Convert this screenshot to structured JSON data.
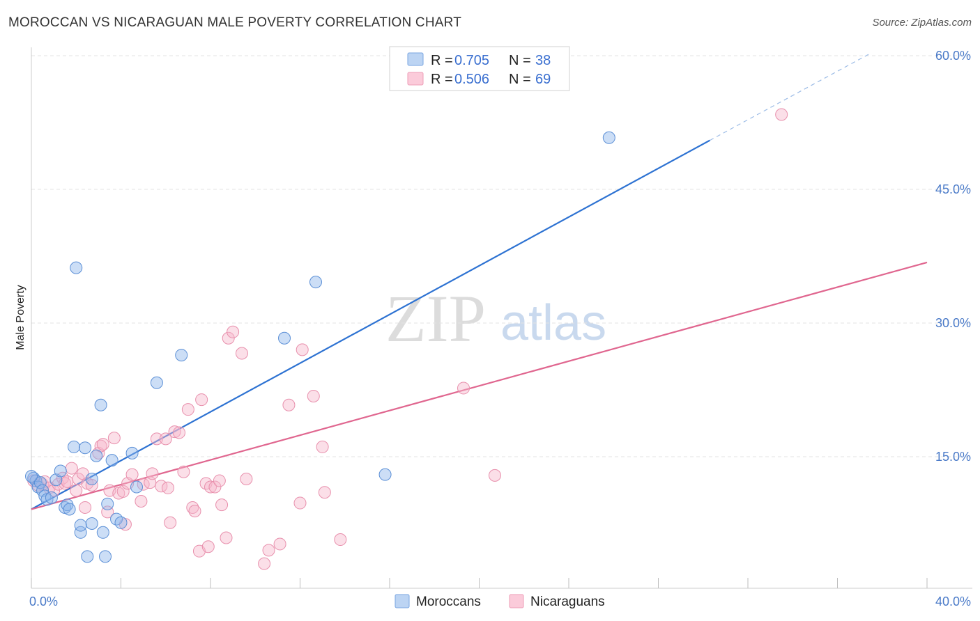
{
  "title": "MOROCCAN VS NICARAGUAN MALE POVERTY CORRELATION CHART",
  "source": "Source: ZipAtlas.com",
  "watermark": {
    "zip": "ZIP",
    "atlas": "atlas"
  },
  "legend": {
    "r_label": "R =",
    "n_label": "N =",
    "entries": [
      {
        "r": "0.705",
        "n": "38"
      },
      {
        "r": "0.506",
        "n": "69"
      }
    ]
  },
  "chart_data": {
    "type": "scatter",
    "title": "MOROCCAN VS NICARAGUAN MALE POVERTY CORRELATION CHART",
    "xlabel": "",
    "ylabel": "Male Poverty",
    "xlim": [
      0,
      40
    ],
    "ylim": [
      0,
      60
    ],
    "x_tick_labels": [
      "0.0%",
      "40.0%"
    ],
    "y_ticks": [
      15,
      30,
      45,
      60
    ],
    "y_tick_labels": [
      "15.0%",
      "30.0%",
      "45.0%",
      "60.0%"
    ],
    "grid": true,
    "legend_position": "top-center",
    "series": [
      {
        "name": "Moroccans",
        "color": "#8fb6ea",
        "stroke": "#5b8fd6",
        "line_color": "#2d72d2",
        "trend": {
          "x0": 0,
          "y0": 9.1,
          "x1": 30.3,
          "y1": 50.5,
          "dash_to_x": 37.5,
          "dash_to_y": 60.3
        },
        "points": [
          [
            0.1,
            12.6
          ],
          [
            0.2,
            12.3
          ],
          [
            0.3,
            11.6
          ],
          [
            0.4,
            12.1
          ],
          [
            0.5,
            11.2
          ],
          [
            0.6,
            10.6
          ],
          [
            0.7,
            10.2
          ],
          [
            0.9,
            10.4
          ],
          [
            1.1,
            12.4
          ],
          [
            1.3,
            13.4
          ],
          [
            1.5,
            9.3
          ],
          [
            1.6,
            9.6
          ],
          [
            1.7,
            9.1
          ],
          [
            1.9,
            16.1
          ],
          [
            2.0,
            36.2
          ],
          [
            2.2,
            6.5
          ],
          [
            2.2,
            7.3
          ],
          [
            2.4,
            16.0
          ],
          [
            2.5,
            3.8
          ],
          [
            2.7,
            7.5
          ],
          [
            2.7,
            12.5
          ],
          [
            2.9,
            15.1
          ],
          [
            3.1,
            20.8
          ],
          [
            3.2,
            6.5
          ],
          [
            3.3,
            3.8
          ],
          [
            3.4,
            9.7
          ],
          [
            3.6,
            14.6
          ],
          [
            3.8,
            8.0
          ],
          [
            4.0,
            7.6
          ],
          [
            4.5,
            15.4
          ],
          [
            4.7,
            11.6
          ],
          [
            5.6,
            23.3
          ],
          [
            6.7,
            26.4
          ],
          [
            11.3,
            28.3
          ],
          [
            12.7,
            34.6
          ],
          [
            15.8,
            13.0
          ],
          [
            25.8,
            50.8
          ],
          [
            0.0,
            12.8
          ]
        ]
      },
      {
        "name": "Nicaraguans",
        "color": "#f7b8cc",
        "stroke": "#e88fac",
        "line_color": "#e0668f",
        "trend": {
          "x0": 0,
          "y0": 9.1,
          "x1": 40,
          "y1": 36.8
        },
        "points": [
          [
            0.1,
            12.3
          ],
          [
            0.3,
            11.8
          ],
          [
            0.5,
            11.9
          ],
          [
            0.6,
            12.2
          ],
          [
            0.8,
            11.5
          ],
          [
            1.0,
            11.2
          ],
          [
            1.2,
            11.9
          ],
          [
            1.4,
            12.6
          ],
          [
            1.5,
            12.0
          ],
          [
            1.6,
            12.2
          ],
          [
            1.8,
            13.7
          ],
          [
            2.0,
            11.2
          ],
          [
            2.1,
            12.5
          ],
          [
            2.3,
            13.1
          ],
          [
            2.4,
            9.3
          ],
          [
            2.5,
            12.0
          ],
          [
            2.7,
            11.8
          ],
          [
            3.0,
            15.4
          ],
          [
            3.1,
            16.2
          ],
          [
            3.2,
            16.4
          ],
          [
            3.4,
            8.8
          ],
          [
            3.5,
            11.2
          ],
          [
            3.7,
            17.1
          ],
          [
            3.9,
            10.9
          ],
          [
            4.1,
            11.1
          ],
          [
            4.2,
            7.4
          ],
          [
            4.3,
            12.0
          ],
          [
            4.5,
            13.0
          ],
          [
            4.9,
            10.0
          ],
          [
            5.0,
            11.9
          ],
          [
            5.3,
            12.1
          ],
          [
            5.4,
            13.1
          ],
          [
            5.6,
            17.0
          ],
          [
            5.8,
            11.7
          ],
          [
            6.0,
            17.0
          ],
          [
            6.1,
            11.5
          ],
          [
            6.2,
            7.6
          ],
          [
            6.4,
            17.8
          ],
          [
            6.6,
            17.7
          ],
          [
            6.8,
            13.3
          ],
          [
            7.0,
            20.3
          ],
          [
            7.2,
            9.3
          ],
          [
            7.3,
            8.9
          ],
          [
            7.5,
            4.4
          ],
          [
            7.6,
            21.4
          ],
          [
            7.8,
            12.0
          ],
          [
            7.9,
            4.9
          ],
          [
            8.0,
            11.6
          ],
          [
            8.2,
            11.6
          ],
          [
            8.4,
            12.3
          ],
          [
            8.5,
            9.6
          ],
          [
            8.7,
            5.9
          ],
          [
            8.8,
            28.3
          ],
          [
            9.0,
            29.0
          ],
          [
            9.4,
            26.6
          ],
          [
            9.6,
            12.5
          ],
          [
            10.4,
            3.0
          ],
          [
            10.6,
            4.5
          ],
          [
            11.1,
            5.2
          ],
          [
            11.5,
            20.8
          ],
          [
            12.0,
            9.8
          ],
          [
            12.1,
            27.0
          ],
          [
            12.6,
            21.8
          ],
          [
            13.0,
            16.1
          ],
          [
            13.1,
            11.0
          ],
          [
            13.8,
            5.7
          ],
          [
            19.3,
            22.7
          ],
          [
            20.7,
            12.9
          ],
          [
            33.5,
            53.4
          ]
        ]
      }
    ]
  }
}
